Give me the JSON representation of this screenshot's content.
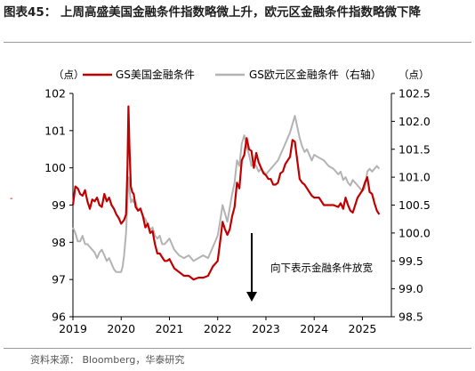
{
  "title": "图表45： 上周高盛美国金融条件指数略微上升，欧元区金融条件指数略微下降",
  "source": "资料来源： Bloomberg，华泰研究",
  "chart_data": {
    "type": "line",
    "left_unit": "（点）",
    "right_unit": "（点）",
    "annotation": "向下表示金融条件放宽",
    "xlim": [
      2019,
      2025.6
    ],
    "x_ticks": [
      "2019",
      "2020",
      "2021",
      "2022",
      "2023",
      "2024",
      "2025"
    ],
    "y_left": {
      "lim": [
        96,
        102
      ],
      "ticks": [
        "96",
        "97",
        "98",
        "99",
        "100",
        "101",
        "102"
      ]
    },
    "y_right": {
      "lim": [
        98.5,
        102.5
      ],
      "ticks": [
        "98.5",
        "99.0",
        "99.5",
        "100.0",
        "100.5",
        "101.0",
        "101.5",
        "102.0",
        "102.5"
      ]
    },
    "series": [
      {
        "name": "GS美国金融条件",
        "axis": "left",
        "color": "#c00000",
        "x": [
          2019.0,
          2019.05,
          2019.1,
          2019.15,
          2019.2,
          2019.25,
          2019.3,
          2019.35,
          2019.4,
          2019.45,
          2019.5,
          2019.55,
          2019.6,
          2019.65,
          2019.7,
          2019.75,
          2019.8,
          2019.85,
          2019.9,
          2019.95,
          2020.0,
          2020.03,
          2020.06,
          2020.1,
          2020.13,
          2020.15,
          2020.17,
          2020.2,
          2020.23,
          2020.26,
          2020.3,
          2020.35,
          2020.4,
          2020.45,
          2020.5,
          2020.55,
          2020.6,
          2020.65,
          2020.7,
          2020.75,
          2020.8,
          2020.85,
          2020.9,
          2020.95,
          2021.0,
          2021.1,
          2021.2,
          2021.3,
          2021.4,
          2021.5,
          2021.6,
          2021.7,
          2021.8,
          2021.9,
          2022.0,
          2022.05,
          2022.1,
          2022.15,
          2022.2,
          2022.25,
          2022.3,
          2022.35,
          2022.4,
          2022.45,
          2022.5,
          2022.55,
          2022.6,
          2022.65,
          2022.7,
          2022.75,
          2022.8,
          2022.85,
          2022.9,
          2022.95,
          2023.0,
          2023.05,
          2023.1,
          2023.15,
          2023.2,
          2023.25,
          2023.3,
          2023.35,
          2023.4,
          2023.45,
          2023.5,
          2023.55,
          2023.6,
          2023.65,
          2023.7,
          2023.75,
          2023.8,
          2023.85,
          2023.9,
          2023.95,
          2024.0,
          2024.1,
          2024.2,
          2024.3,
          2024.4,
          2024.5,
          2024.55,
          2024.6,
          2024.65,
          2024.7,
          2024.75,
          2024.8,
          2024.9,
          2025.0,
          2025.05,
          2025.1,
          2025.15,
          2025.2,
          2025.25,
          2025.3,
          2025.35
        ],
        "values": [
          99.0,
          99.5,
          99.45,
          99.3,
          99.25,
          99.4,
          99.1,
          98.9,
          99.15,
          99.1,
          99.2,
          99.0,
          98.95,
          99.3,
          99.1,
          99.2,
          99.0,
          98.9,
          98.75,
          98.65,
          98.5,
          98.55,
          98.6,
          98.75,
          100.0,
          101.65,
          100.6,
          99.5,
          99.35,
          99.3,
          98.95,
          98.85,
          98.9,
          98.7,
          98.4,
          98.5,
          98.25,
          98.3,
          97.95,
          97.7,
          97.7,
          97.6,
          97.5,
          97.5,
          97.55,
          97.3,
          97.2,
          97.1,
          97.1,
          97.0,
          97.05,
          97.05,
          97.1,
          97.35,
          97.5,
          98.0,
          98.55,
          98.35,
          98.2,
          98.35,
          98.7,
          98.95,
          99.6,
          99.45,
          100.2,
          100.35,
          100.8,
          100.5,
          100.45,
          100.0,
          100.4,
          100.15,
          100.0,
          99.85,
          99.8,
          99.7,
          99.7,
          99.55,
          99.55,
          99.6,
          99.85,
          99.9,
          100.1,
          100.2,
          100.3,
          100.75,
          100.7,
          100.2,
          99.7,
          99.6,
          99.55,
          99.45,
          99.35,
          99.25,
          99.2,
          99.2,
          99.0,
          99.0,
          99.0,
          98.95,
          99.05,
          98.9,
          99.2,
          99.0,
          98.85,
          98.8,
          99.2,
          99.4,
          99.6,
          99.75,
          99.35,
          99.3,
          99.05,
          98.85,
          98.75
        ]
      },
      {
        "name": "GS欧元区金融条件（右轴）",
        "axis": "right",
        "color": "#b3b3b3",
        "x": [
          2019.0,
          2019.05,
          2019.1,
          2019.15,
          2019.2,
          2019.25,
          2019.3,
          2019.35,
          2019.4,
          2019.45,
          2019.5,
          2019.55,
          2019.6,
          2019.65,
          2019.7,
          2019.75,
          2019.8,
          2019.85,
          2019.9,
          2019.95,
          2020.0,
          2020.03,
          2020.06,
          2020.1,
          2020.13,
          2020.15,
          2020.17,
          2020.2,
          2020.23,
          2020.26,
          2020.3,
          2020.35,
          2020.4,
          2020.45,
          2020.5,
          2020.55,
          2020.6,
          2020.65,
          2020.7,
          2020.75,
          2020.8,
          2020.85,
          2020.9,
          2020.95,
          2021.0,
          2021.1,
          2021.2,
          2021.3,
          2021.4,
          2021.5,
          2021.6,
          2021.7,
          2021.8,
          2021.9,
          2022.0,
          2022.05,
          2022.1,
          2022.15,
          2022.2,
          2022.25,
          2022.3,
          2022.35,
          2022.4,
          2022.45,
          2022.5,
          2022.55,
          2022.6,
          2022.65,
          2022.7,
          2022.75,
          2022.8,
          2022.85,
          2022.9,
          2022.95,
          2023.0,
          2023.05,
          2023.1,
          2023.15,
          2023.2,
          2023.25,
          2023.3,
          2023.35,
          2023.4,
          2023.45,
          2023.5,
          2023.55,
          2023.6,
          2023.65,
          2023.7,
          2023.75,
          2023.8,
          2023.85,
          2023.9,
          2023.95,
          2024.0,
          2024.1,
          2024.2,
          2024.3,
          2024.4,
          2024.5,
          2024.55,
          2024.6,
          2024.65,
          2024.7,
          2024.75,
          2024.8,
          2024.9,
          2025.0,
          2025.05,
          2025.1,
          2025.15,
          2025.2,
          2025.25,
          2025.3,
          2025.35
        ],
        "values": [
          100.1,
          100.0,
          99.85,
          99.85,
          99.95,
          99.8,
          99.8,
          99.75,
          99.7,
          99.65,
          99.55,
          99.65,
          99.7,
          99.6,
          99.5,
          99.55,
          99.45,
          99.35,
          99.3,
          99.3,
          99.3,
          99.4,
          99.6,
          100.0,
          100.6,
          101.0,
          100.8,
          100.55,
          100.6,
          100.55,
          100.55,
          100.4,
          100.45,
          100.3,
          100.25,
          100.15,
          100.05,
          100.1,
          99.95,
          99.9,
          99.95,
          99.8,
          99.8,
          99.85,
          99.9,
          99.7,
          99.6,
          99.55,
          99.6,
          99.5,
          99.55,
          99.6,
          99.55,
          99.75,
          99.95,
          100.2,
          100.5,
          100.35,
          100.2,
          100.45,
          100.7,
          100.9,
          101.3,
          101.2,
          101.6,
          101.75,
          101.55,
          101.4,
          101.2,
          101.25,
          101.2,
          101.1,
          101.15,
          101.1,
          101.05,
          101.1,
          101.15,
          101.2,
          101.25,
          101.3,
          101.4,
          101.5,
          101.6,
          101.7,
          101.8,
          101.95,
          102.1,
          101.9,
          101.7,
          101.55,
          101.45,
          101.5,
          101.4,
          101.3,
          101.4,
          101.35,
          101.3,
          101.2,
          101.15,
          101.05,
          101.1,
          100.95,
          101.0,
          100.9,
          100.85,
          100.95,
          100.85,
          100.75,
          100.8,
          101.1,
          101.15,
          101.1,
          101.15,
          101.2,
          101.15
        ]
      }
    ]
  }
}
